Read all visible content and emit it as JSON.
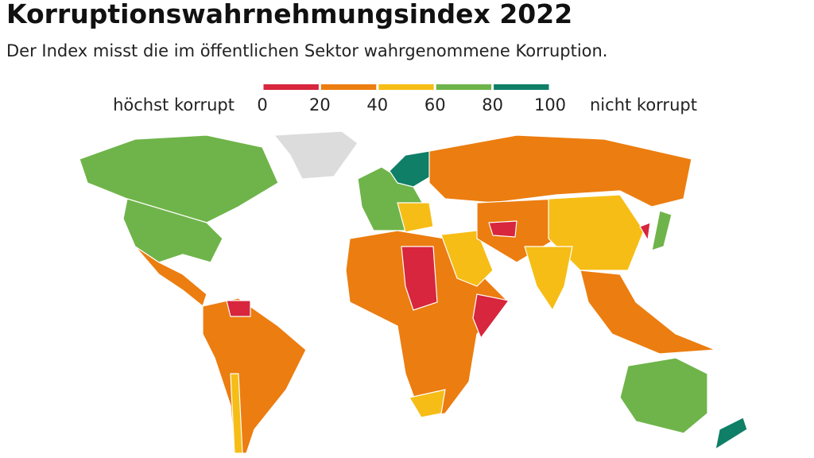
{
  "header": {
    "title": "Korruptionswahrnehmungsindex 2022",
    "subtitle": "Der Index misst die im öffentlichen Sektor wahrgenommene Korruption."
  },
  "legend": {
    "low_label": "höchst korrupt",
    "high_label": "nicht korrupt",
    "ticks": [
      0,
      20,
      40,
      60,
      80,
      100
    ],
    "colors": [
      "#d7263d",
      "#ec7d10",
      "#f6bd16",
      "#6fb44a",
      "#0f7f67"
    ]
  }
}
